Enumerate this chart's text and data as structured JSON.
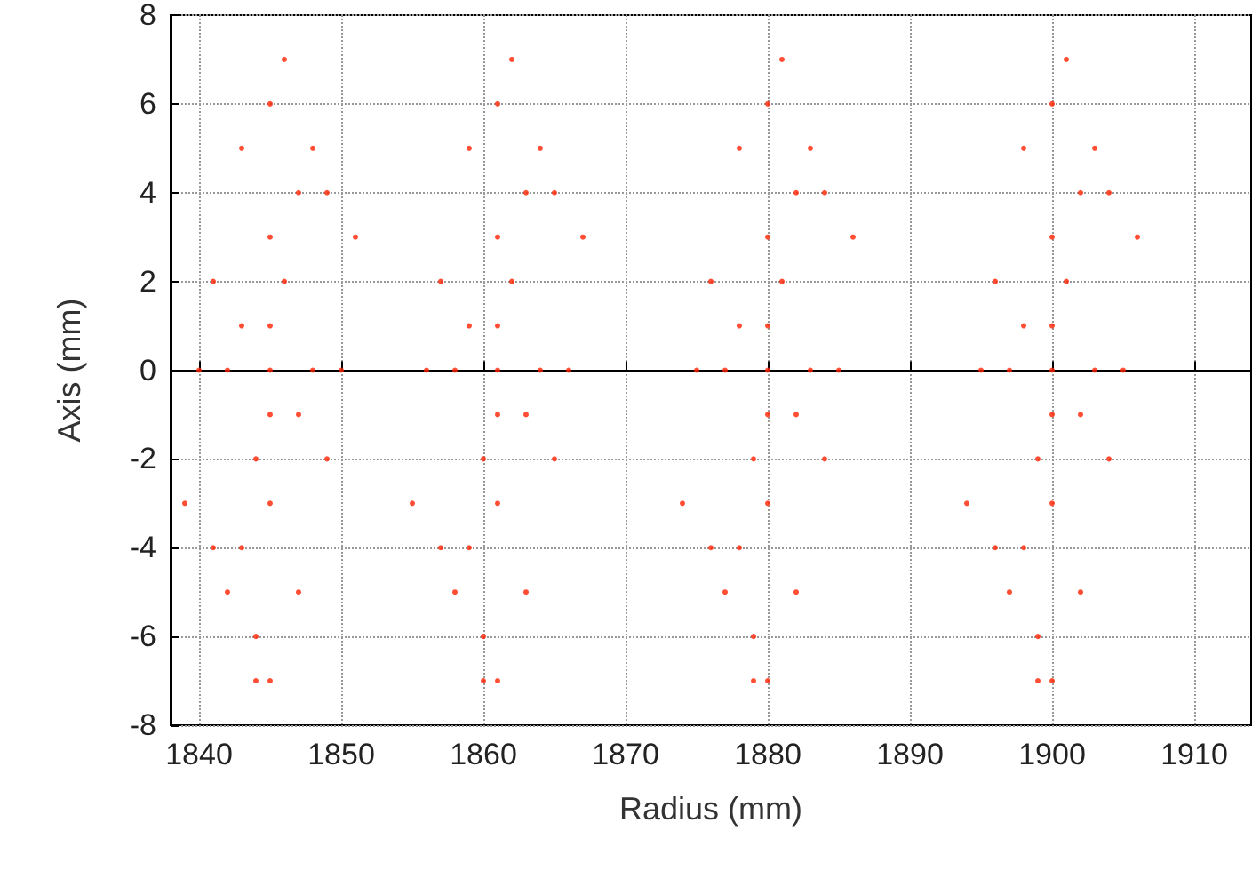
{
  "chart_data": {
    "type": "scatter",
    "xlabel": "Radius (mm)",
    "ylabel": "Axis (mm)",
    "xlim": [
      1838,
      1914
    ],
    "xticks": [
      1840,
      1850,
      1860,
      1870,
      1880,
      1890,
      1900,
      1910
    ],
    "ylim": [
      -8,
      8
    ],
    "yticks": [
      -8,
      -6,
      -4,
      -2,
      0,
      2,
      4,
      6,
      8
    ],
    "grid": true,
    "marker": "circle",
    "series": [
      {
        "color": "#ff2200",
        "x": [
          1845,
          1843,
          1847,
          1844,
          1846,
          1842,
          1848,
          1845,
          1845,
          1843,
          1847,
          1841,
          1849,
          1840,
          1850,
          1845,
          1845,
          1842,
          1848,
          1844,
          1846,
          1839,
          1851,
          1843,
          1847,
          1845,
          1845,
          1841,
          1849,
          1844,
          1861,
          1859,
          1863,
          1860,
          1862,
          1858,
          1864,
          1861,
          1861,
          1859,
          1863,
          1857,
          1865,
          1856,
          1866,
          1861,
          1861,
          1858,
          1864,
          1860,
          1862,
          1855,
          1867,
          1859,
          1863,
          1861,
          1861,
          1857,
          1865,
          1860,
          1880,
          1878,
          1882,
          1879,
          1881,
          1877,
          1883,
          1880,
          1880,
          1878,
          1882,
          1876,
          1884,
          1875,
          1885,
          1880,
          1880,
          1877,
          1883,
          1879,
          1881,
          1874,
          1886,
          1878,
          1882,
          1880,
          1880,
          1876,
          1884,
          1879,
          1900,
          1898,
          1902,
          1899,
          1901,
          1897,
          1903,
          1900,
          1900,
          1898,
          1902,
          1896,
          1904,
          1895,
          1905,
          1900,
          1900,
          1897,
          1903,
          1899,
          1901,
          1894,
          1906,
          1898,
          1902,
          1900,
          1900,
          1896,
          1904,
          1899
        ],
        "values": [
          0,
          1,
          -1,
          -2,
          2,
          0,
          0,
          3,
          -3,
          -4,
          4,
          2,
          -2,
          0,
          0,
          6,
          -7,
          -5,
          5,
          -6,
          7,
          -3,
          3,
          5,
          -5,
          -1,
          1,
          -4,
          4,
          -7,
          0,
          1,
          -1,
          -2,
          2,
          0,
          0,
          3,
          -3,
          -4,
          4,
          2,
          -2,
          0,
          0,
          6,
          -7,
          -5,
          5,
          -6,
          7,
          -3,
          3,
          5,
          -5,
          -1,
          1,
          -4,
          4,
          -7,
          0,
          1,
          -1,
          -2,
          2,
          0,
          0,
          3,
          -3,
          -4,
          4,
          2,
          -2,
          0,
          0,
          6,
          -7,
          -5,
          5,
          -6,
          7,
          -3,
          3,
          5,
          -5,
          -1,
          1,
          -4,
          4,
          -7,
          0,
          1,
          -1,
          -2,
          2,
          0,
          0,
          3,
          -3,
          -4,
          4,
          2,
          -2,
          0,
          0,
          6,
          -7,
          -5,
          5,
          -6,
          7,
          -3,
          3,
          5,
          -5,
          -1,
          1,
          -4,
          4,
          -7
        ]
      }
    ]
  }
}
